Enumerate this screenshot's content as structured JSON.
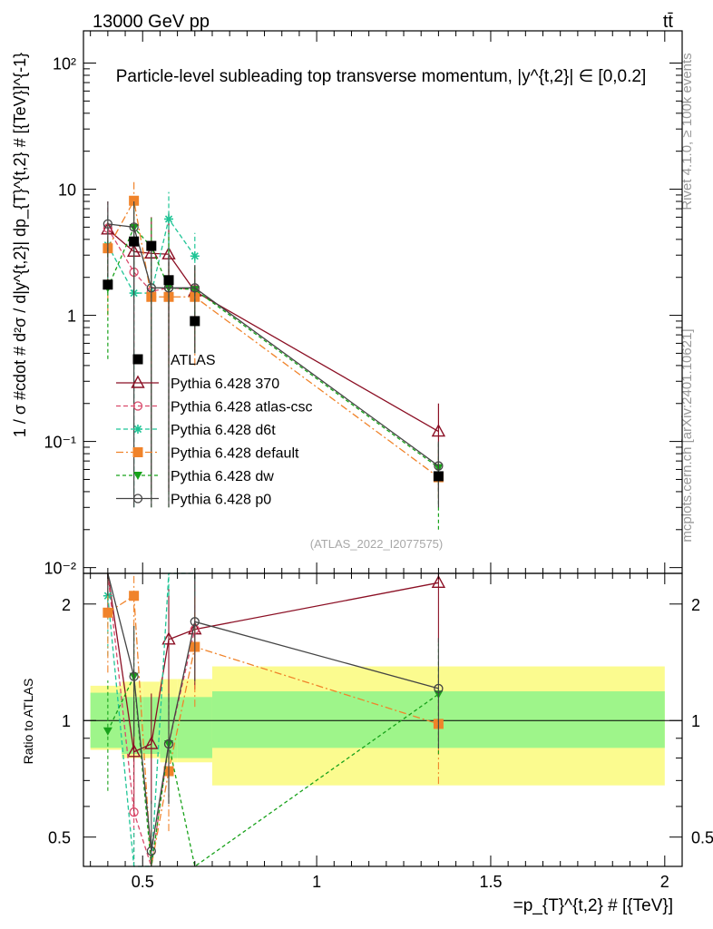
{
  "header": {
    "left": "13000 GeV pp",
    "right": "tt̄",
    "title": "Particle-level subleading top transverse momentum, |y^{t,2}| ∈ [0,0.2]",
    "watermark": "(ATLAS_2022_I2077575)",
    "side_rivet": "Rivet 4.1.0, ≥ 100k events",
    "side_mcplots": "mcplots.cern.ch [arXiv:2401.10621]"
  },
  "axes": {
    "ylabel_main": "1 / σ #cdot # d²σ / d|y^{t,2}| dp_{T}^{t,2} # [{TeV}]^{-1}",
    "ylabel_ratio": "Ratio to ATLAS",
    "xlabel": "=p_{T}^{t,2} # [{TeV}]",
    "x_ticks": [
      "0.5",
      "1",
      "1.5",
      "2"
    ],
    "y_ticks_main": [
      "10²",
      "10",
      "1",
      "10⁻¹",
      "10⁻²"
    ],
    "y_ticks_ratio": [
      "2",
      "1",
      "0.5"
    ]
  },
  "colors": {
    "atlas": "#000000",
    "p370": "#8b0f24",
    "atlas_csc": "#d94a6b",
    "d6t": "#1fc596",
    "default": "#f0832a",
    "dw": "#18a21a",
    "p0": "#444444",
    "band_inner": "#9ef58a",
    "band_outer": "#fbfb8f"
  },
  "chart_data": {
    "type": "scatter",
    "x_range": [
      0.33,
      2.05
    ],
    "y_range_main": [
      0.009,
      180
    ],
    "y_range_ratio": [
      0.42,
      2.4
    ],
    "bins": [
      [
        0.35,
        0.44
      ],
      [
        0.44,
        0.5
      ],
      [
        0.5,
        0.55
      ],
      [
        0.55,
        0.6
      ],
      [
        0.6,
        0.7
      ],
      [
        0.7,
        2.0
      ]
    ],
    "ratio_band_inner": [
      [
        0.85,
        1.18
      ],
      [
        0.82,
        1.15
      ],
      [
        0.82,
        1.15
      ],
      [
        0.8,
        1.15
      ],
      [
        0.8,
        1.15
      ],
      [
        0.85,
        1.19
      ]
    ],
    "ratio_band_outer": [
      [
        0.84,
        1.23
      ],
      [
        0.8,
        1.26
      ],
      [
        0.8,
        1.26
      ],
      [
        0.78,
        1.28
      ],
      [
        0.78,
        1.28
      ],
      [
        0.68,
        1.38
      ]
    ],
    "data": {
      "name": "ATLAS",
      "x": [
        0.4,
        0.475,
        0.525,
        0.575,
        0.65,
        1.35
      ],
      "y": [
        1.75,
        3.85,
        3.55,
        1.9,
        0.9,
        0.053
      ]
    },
    "series": [
      {
        "name": "Pythia 6.428 370",
        "key": "p370",
        "marker": "triangle-open",
        "dash": "",
        "x": [
          0.4,
          0.475,
          0.525,
          0.575,
          0.65,
          1.35
        ],
        "y": [
          4.8,
          3.2,
          3.1,
          3.05,
          1.55,
          0.12
        ],
        "err": [
          [
            1.5,
            2.1
          ],
          [
            1.5,
            5.5
          ],
          [
            0.04,
            6.0
          ],
          [
            0.04,
            6.5
          ],
          [
            0.5,
            2.2
          ],
          [
            0.04,
            0.2
          ]
        ],
        "ratio": [
          2.8,
          0.83,
          0.87,
          1.62,
          1.72,
          2.27
        ]
      },
      {
        "name": "Pythia 6.428 atlas-csc",
        "key": "atlas_csc",
        "marker": "circle-open",
        "dash": "5,3",
        "x": [
          0.4,
          0.475,
          0.525,
          0.575,
          0.65
        ],
        "y": [
          4.9,
          2.2,
          1.55,
          1.65,
          1.6
        ],
        "err": [
          [
            2.0,
            8.0
          ],
          [
            0.5,
            4.5
          ],
          [
            0.5,
            3.0
          ],
          [
            0.5,
            3.0
          ],
          [
            0.5,
            2.5
          ]
        ],
        "ratio": [
          2.8,
          0.58,
          0.3,
          0.87,
          1.72
        ]
      },
      {
        "name": "Pythia 6.428 d6t",
        "key": "d6t",
        "marker": "star",
        "dash": "5,3",
        "x": [
          0.4,
          0.475,
          0.525,
          0.575,
          0.65
        ],
        "y": [
          3.6,
          1.5,
          1.5,
          5.8,
          2.95
        ],
        "err": [
          [
            1.5,
            6.5
          ],
          [
            0.03,
            4.5
          ],
          [
            0.5,
            3.0
          ],
          [
            2.8,
            9.5
          ],
          [
            0.9,
            4.5
          ]
        ],
        "ratio": [
          2.1,
          0.39,
          0.38,
          3.0,
          3.0
        ]
      },
      {
        "name": "Pythia 6.428 default",
        "key": "default",
        "marker": "square",
        "dash": "8,3,2,3",
        "x": [
          0.4,
          0.475,
          0.525,
          0.575,
          0.65,
          1.35
        ],
        "y": [
          3.4,
          8.1,
          1.4,
          1.4,
          1.4,
          0.052
        ],
        "err": [
          [
            1.0,
            5.5
          ],
          [
            4.5,
            11.5
          ],
          [
            0.4,
            2.5
          ],
          [
            0.4,
            2.5
          ],
          [
            0.4,
            2.5
          ],
          [
            0.035,
            0.08
          ]
        ],
        "ratio": [
          1.9,
          2.1,
          0.39,
          0.74,
          1.55,
          0.98
        ]
      },
      {
        "name": "Pythia 6.428 dw",
        "key": "dw",
        "marker": "triangle-down",
        "dash": "4,3",
        "x": [
          0.4,
          0.475,
          0.525,
          0.575,
          0.65,
          1.35
        ],
        "y": [
          1.65,
          4.95,
          3.5,
          1.65,
          1.6,
          0.062
        ],
        "err": [
          [
            0.45,
            4.0
          ],
          [
            2.0,
            8.0
          ],
          [
            0.03,
            6.0
          ],
          [
            0.03,
            4.5
          ],
          [
            0.5,
            2.5
          ],
          [
            0.02,
            0.1
          ]
        ],
        "ratio": [
          0.94,
          1.3,
          0.3,
          0.87,
          0.3,
          1.17
        ]
      },
      {
        "name": "Pythia 6.428 p0",
        "key": "p0",
        "marker": "circle-open",
        "dash": "",
        "x": [
          0.4,
          0.475,
          0.525,
          0.575,
          0.65,
          1.35
        ],
        "y": [
          5.3,
          5.0,
          1.65,
          1.65,
          1.65,
          0.064
        ],
        "err": [
          [
            2.0,
            8.0
          ],
          [
            0.03,
            8.0
          ],
          [
            0.03,
            3.5
          ],
          [
            0.03,
            3.0
          ],
          [
            0.5,
            2.5
          ],
          [
            0.03,
            0.1
          ]
        ],
        "ratio": [
          3.0,
          1.3,
          0.46,
          0.87,
          1.8,
          1.21
        ]
      }
    ]
  }
}
